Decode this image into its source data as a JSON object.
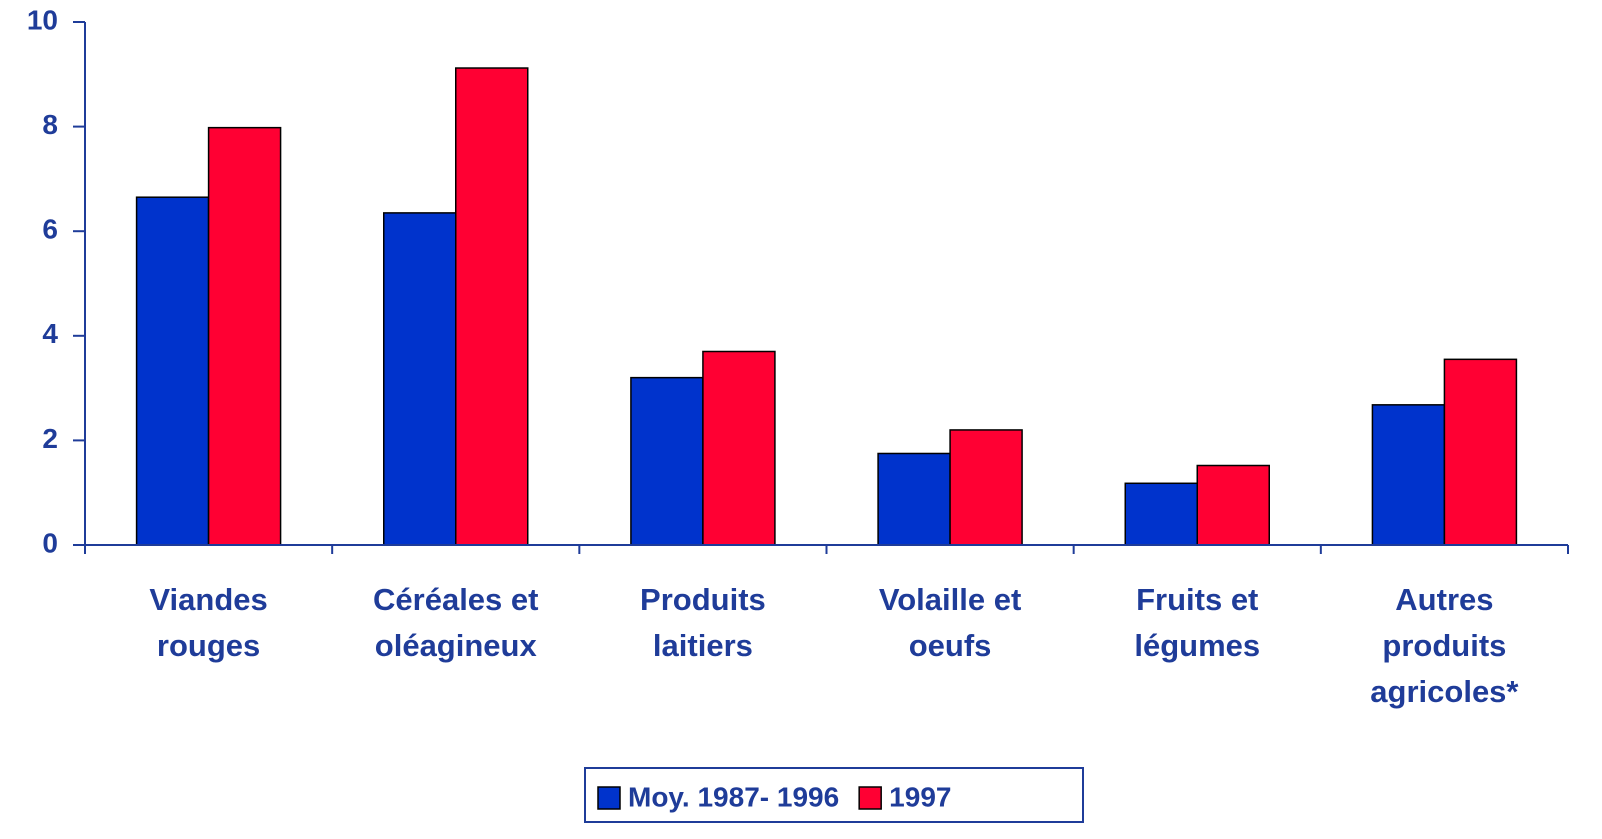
{
  "chart_data": {
    "type": "bar",
    "categories": [
      "Viandes\nrouges",
      "Céréales et\noléagineux",
      "Produits\nlaitiers",
      "Volaille et\noeufs",
      "Fruits et\nlégumes",
      "Autres\nproduits\nagricoles*"
    ],
    "series": [
      {
        "name": "Moy. 1987- 1996",
        "color": "#0033cc",
        "values": [
          6.65,
          6.35,
          3.2,
          1.75,
          1.18,
          2.68
        ]
      },
      {
        "name": "1997",
        "color": "#ff0033",
        "values": [
          7.98,
          9.12,
          3.7,
          2.2,
          1.52,
          3.55
        ]
      }
    ],
    "ylim": [
      0,
      10
    ],
    "yticks": [
      0,
      2,
      4,
      6,
      8,
      10
    ],
    "grid": false,
    "legend": "bottom"
  }
}
